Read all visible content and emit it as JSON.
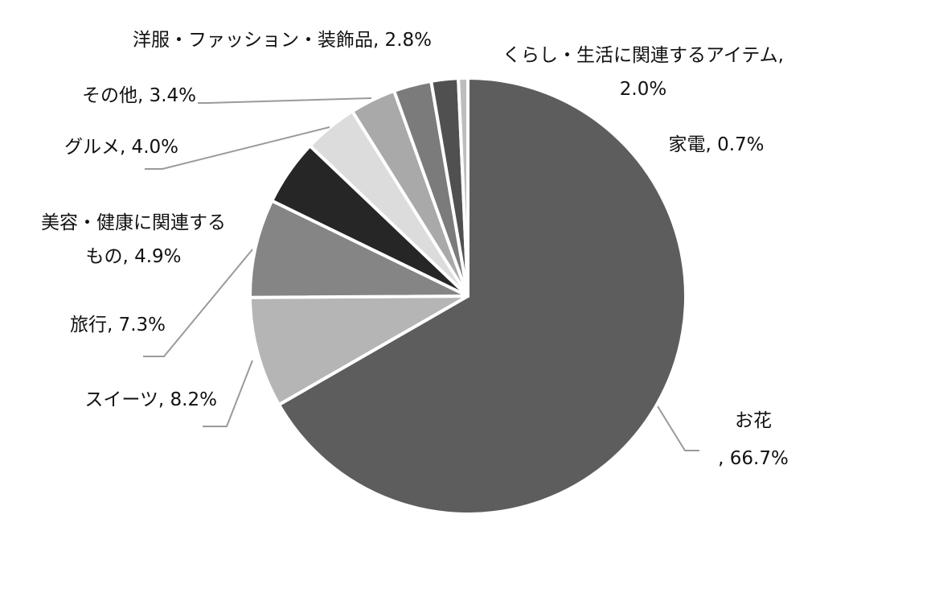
{
  "chart_data": {
    "type": "pie",
    "title": "",
    "start": "top",
    "direction": "clockwise",
    "legend": "none",
    "slices": [
      {
        "label": "お花",
        "label_text": ", 66.7%",
        "value": 66.7,
        "color": "#5d5d5d"
      },
      {
        "label": "スイーツ",
        "label_text": "スイーツ, 8.2%",
        "value": 8.2,
        "color": "#b5b5b5"
      },
      {
        "label": "旅行",
        "label_text": "旅行, 7.3%",
        "value": 7.3,
        "color": "#858585"
      },
      {
        "label": "美容・健康に関連するもの",
        "label_text": "美容・健康に関連する",
        "label_text_2": "もの, 4.9%",
        "value": 4.9,
        "color": "#262626"
      },
      {
        "label": "グルメ",
        "label_text": "グルメ, 4.0%",
        "value": 4.0,
        "color": "#dcdcdc"
      },
      {
        "label": "その他",
        "label_text": "その他, 3.4%",
        "value": 3.4,
        "color": "#a9a9a9"
      },
      {
        "label": "洋服・ファッション・装飾品",
        "label_text": "洋服・ファッション・装飾品, 2.8%",
        "value": 2.8,
        "color": "#7b7b7b"
      },
      {
        "label": "くらし・生活に関連するアイテム",
        "label_text": "くらし・生活に関連するアイテム,",
        "label_text_2": "2.0%",
        "value": 2.0,
        "color": "#505050"
      },
      {
        "label": "家電",
        "label_text": "家電, 0.7%",
        "value": 0.7,
        "color": "#bdbdbd"
      }
    ]
  }
}
